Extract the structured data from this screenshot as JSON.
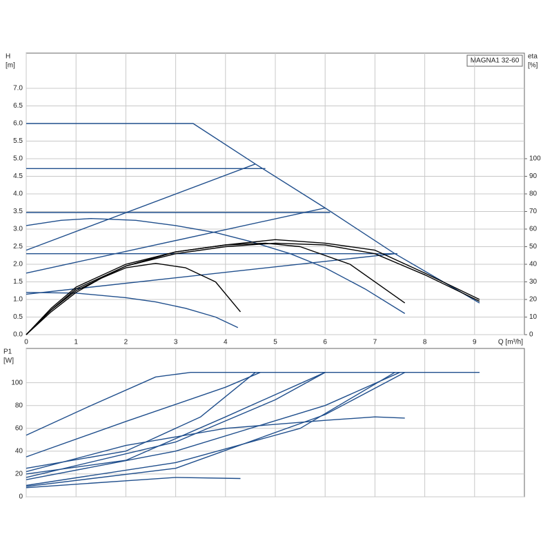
{
  "chart_data": [
    {
      "type": "line",
      "model": "MAGNA1 32-60",
      "ylabel": "H",
      "yunit": "[m]",
      "y2label": "eta",
      "y2unit": "[%]",
      "xlabel": "Q [m³/h]",
      "xlim": [
        0,
        10
      ],
      "xticks": [
        0,
        1,
        2,
        3,
        4,
        5,
        6,
        7,
        8,
        9
      ],
      "ylim": [
        0,
        8
      ],
      "yticks": [
        {
          "value": 0,
          "label": "0.0"
        },
        {
          "value": 0.5,
          "label": "0.5"
        },
        {
          "value": 1,
          "label": "1.0"
        },
        {
          "value": 1.5,
          "label": "1.5"
        },
        {
          "value": 2,
          "label": "2.0"
        },
        {
          "value": 2.5,
          "label": "2.5"
        },
        {
          "value": 3,
          "label": "3.0"
        },
        {
          "value": 3.5,
          "label": "3.5"
        },
        {
          "value": 4,
          "label": "4.0"
        },
        {
          "value": 4.5,
          "label": "4.5"
        },
        {
          "value": 5,
          "label": "5.0"
        },
        {
          "value": 5.5,
          "label": "5.5"
        },
        {
          "value": 6,
          "label": "6.0"
        },
        {
          "value": 6.5,
          "label": "6.5"
        },
        {
          "value": 7,
          "label": "7.0"
        }
      ],
      "y2lim": [
        0,
        160
      ],
      "y2ticks": [
        0,
        10,
        20,
        30,
        40,
        50,
        60,
        70,
        80,
        90,
        100
      ],
      "grid": true,
      "series": [
        {
          "color": "#1f4e8c",
          "x": [
            0,
            3.35,
            4.6,
            6.0,
            7.4,
            9.1
          ],
          "values": [
            6.0,
            6.0,
            4.85,
            3.6,
            2.3,
            0.9
          ]
        },
        {
          "color": "#1f4e8c",
          "x": [
            0,
            4.8
          ],
          "values": [
            4.72,
            4.72
          ]
        },
        {
          "color": "#1f4e8c",
          "x": [
            0,
            6.1
          ],
          "values": [
            3.47,
            3.47
          ]
        },
        {
          "color": "#1f4e8c",
          "x": [
            0,
            7.45
          ],
          "values": [
            2.3,
            2.3
          ]
        },
        {
          "color": "#1f4e8c",
          "x": [
            0,
            4.6
          ],
          "values": [
            2.4,
            4.85
          ]
        },
        {
          "color": "#1f4e8c",
          "x": [
            0,
            6.0
          ],
          "values": [
            1.75,
            3.6
          ]
        },
        {
          "color": "#1f4e8c",
          "x": [
            0,
            7.4
          ],
          "values": [
            1.15,
            2.3
          ]
        },
        {
          "color": "#1f4e8c",
          "x": [
            0,
            0.7,
            1.3,
            2.2,
            3,
            3.8,
            4.5,
            5.3,
            6,
            6.8,
            7.6
          ],
          "values": [
            3.1,
            3.25,
            3.3,
            3.25,
            3.1,
            2.9,
            2.65,
            2.3,
            1.9,
            1.3,
            0.6
          ]
        },
        {
          "color": "#1f4e8c",
          "x": [
            0,
            1,
            2,
            2.6,
            3.2,
            3.8,
            4.25
          ],
          "values": [
            1.2,
            1.18,
            1.05,
            0.93,
            0.75,
            0.5,
            0.2
          ]
        },
        {
          "color": "#000000",
          "axis": "y2",
          "x": [
            0,
            0.5,
            1,
            1.5,
            2,
            2.6,
            3.2,
            3.8,
            4.3
          ],
          "values": [
            0,
            13,
            24,
            32,
            38,
            40.5,
            38,
            30,
            13
          ]
        },
        {
          "color": "#000000",
          "axis": "y2",
          "x": [
            0,
            0.5,
            1,
            2,
            3,
            4,
            4.8,
            5.5,
            6.5,
            7.6
          ],
          "values": [
            0,
            14,
            25,
            39,
            47,
            51,
            52,
            50,
            40,
            18
          ]
        },
        {
          "color": "#000000",
          "axis": "y2",
          "x": [
            0,
            0.5,
            1,
            2,
            3,
            4,
            5,
            6,
            7,
            8,
            9.1
          ],
          "values": [
            0,
            15,
            27,
            40,
            47,
            51,
            54,
            52,
            48,
            35,
            20
          ]
        },
        {
          "color": "#000000",
          "axis": "y2",
          "x": [
            0,
            0.5,
            1,
            2,
            3,
            4,
            5,
            6,
            7,
            8,
            9.1
          ],
          "values": [
            0,
            14,
            26,
            39,
            46,
            50,
            52,
            51,
            46,
            34,
            19
          ]
        }
      ]
    },
    {
      "type": "line",
      "ylabel": "P1",
      "yunit": "[W]",
      "xlim": [
        0,
        10
      ],
      "ylim": [
        0,
        130
      ],
      "yticks": [
        0,
        20,
        40,
        60,
        80,
        100
      ],
      "grid": true,
      "series": [
        {
          "color": "#1f4e8c",
          "x": [
            0,
            1.3,
            2.6,
            3.3,
            9.1
          ],
          "values": [
            54,
            80,
            105,
            109,
            109
          ]
        },
        {
          "color": "#1f4e8c",
          "x": [
            0,
            2,
            4,
            4.7
          ],
          "values": [
            35,
            66,
            96,
            109
          ]
        },
        {
          "color": "#1f4e8c",
          "x": [
            0,
            2,
            3.5,
            4.6
          ],
          "values": [
            25,
            40,
            70,
            109
          ]
        },
        {
          "color": "#1f4e8c",
          "x": [
            0,
            2,
            4,
            6
          ],
          "values": [
            20,
            32,
            70,
            109
          ]
        },
        {
          "color": "#1f4e8c",
          "x": [
            0,
            3,
            5,
            6
          ],
          "values": [
            17,
            48,
            85,
            109
          ]
        },
        {
          "color": "#1f4e8c",
          "x": [
            0,
            3,
            6,
            7.5
          ],
          "values": [
            15,
            40,
            80,
            109
          ]
        },
        {
          "color": "#1f4e8c",
          "x": [
            0,
            3,
            5.5,
            7.4
          ],
          "values": [
            10,
            30,
            60,
            109
          ]
        },
        {
          "color": "#1f4e8c",
          "x": [
            0,
            3,
            6,
            7.6
          ],
          "values": [
            9,
            25,
            72,
            109
          ]
        },
        {
          "color": "#1f4e8c",
          "x": [
            0,
            2,
            4,
            6,
            7,
            7.6
          ],
          "values": [
            22,
            45,
            60,
            67,
            70,
            69
          ]
        },
        {
          "color": "#1f4e8c",
          "x": [
            0,
            2,
            3,
            4.3
          ],
          "values": [
            8,
            14,
            17,
            16
          ]
        }
      ]
    }
  ]
}
